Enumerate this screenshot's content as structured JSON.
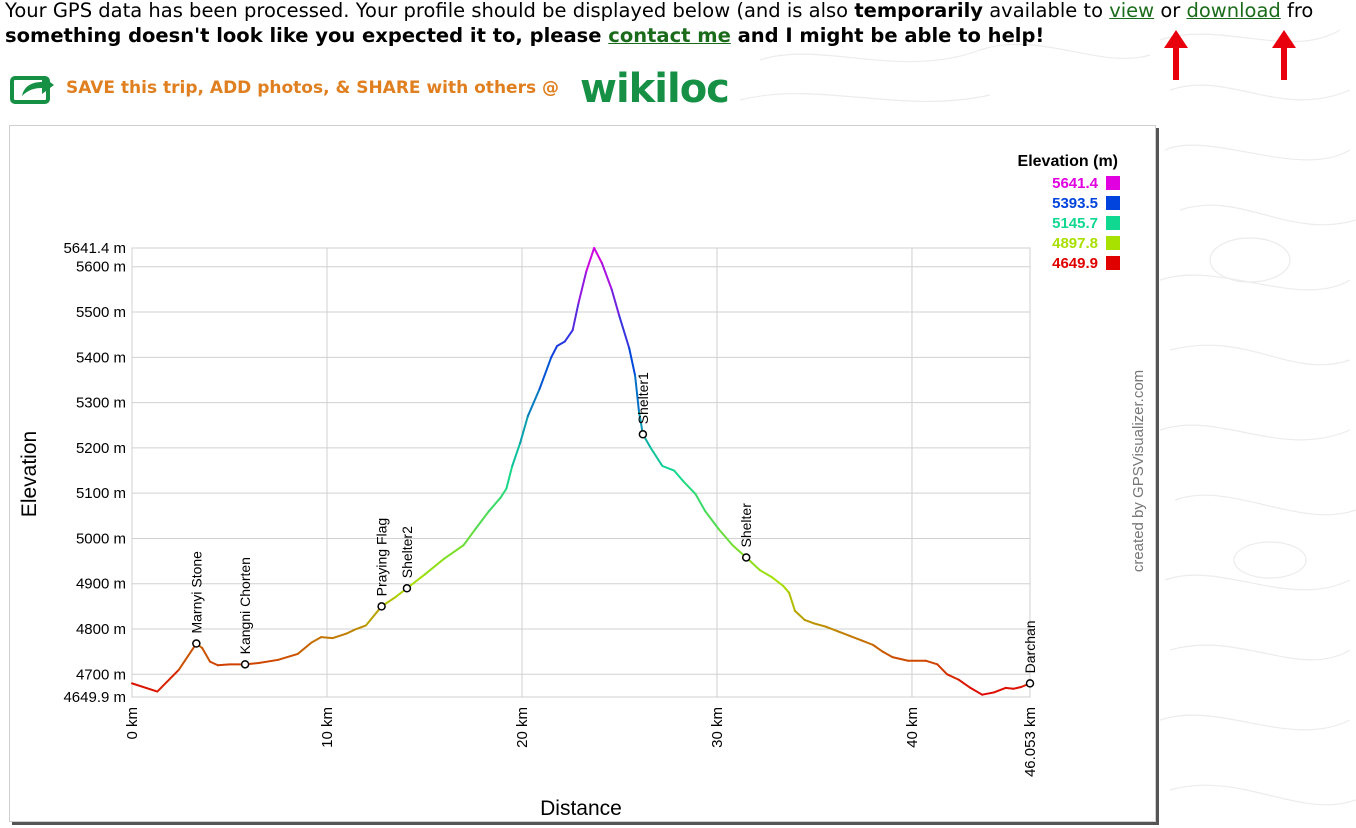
{
  "message": {
    "line1_a": "Your GPS data has been processed. Your profile should be displayed below (and is also ",
    "line1_bold": "temporarily",
    "line1_b": " available to ",
    "view_link": "view",
    "or_text": " or ",
    "download_link": "download",
    "line1_c": " fro",
    "line2_a": "something doesn't look like you expected it to, please ",
    "contact_link": "contact me",
    "line2_b": " and I might be able to help!"
  },
  "banner": {
    "text": "SAVE this trip, ADD photos, & SHARE with others @",
    "brand": "wikiloc",
    "icon": "share-arrow-icon"
  },
  "colors": {
    "link": "#1a6b1a",
    "arrow": "#e8000c",
    "banner_text": "#e07f20",
    "brand": "#159045"
  },
  "chart_data": {
    "type": "line",
    "xlabel": "Distance",
    "ylabel": "Elevation",
    "xlim": [
      0,
      46.053
    ],
    "ylim": [
      4649.9,
      5641.4
    ],
    "x_ticks": [
      {
        "v": 0,
        "label": "0 km"
      },
      {
        "v": 10,
        "label": "10 km"
      },
      {
        "v": 20,
        "label": "20 km"
      },
      {
        "v": 30,
        "label": "30 km"
      },
      {
        "v": 40,
        "label": "40 km"
      },
      {
        "v": 46.053,
        "label": "46.053 km"
      }
    ],
    "y_ticks": [
      {
        "v": 4649.9,
        "label": "4649.9 m"
      },
      {
        "v": 4700,
        "label": "4700 m"
      },
      {
        "v": 4800,
        "label": "4800 m"
      },
      {
        "v": 4900,
        "label": "4900 m"
      },
      {
        "v": 5000,
        "label": "5000 m"
      },
      {
        "v": 5100,
        "label": "5100 m"
      },
      {
        "v": 5200,
        "label": "5200 m"
      },
      {
        "v": 5300,
        "label": "5300 m"
      },
      {
        "v": 5400,
        "label": "5400 m"
      },
      {
        "v": 5500,
        "label": "5500 m"
      },
      {
        "v": 5600,
        "label": "5600 m"
      },
      {
        "v": 5641.4,
        "label": "5641.4 m"
      }
    ],
    "grid": true,
    "legend": {
      "title": "Elevation (m)",
      "placement": "top-right",
      "entries": [
        {
          "label": "5641.4",
          "color": "#e000e0"
        },
        {
          "label": "5393.5",
          "color": "#0044dd"
        },
        {
          "label": "5145.7",
          "color": "#10d890"
        },
        {
          "label": "4897.8",
          "color": "#a8e000"
        },
        {
          "label": "4649.9",
          "color": "#e00000"
        }
      ]
    },
    "credit": "created by GPSVisualizer.com",
    "points": [
      [
        0,
        4680
      ],
      [
        1.3,
        4662
      ],
      [
        2.4,
        4710
      ],
      [
        3.3,
        4768
      ],
      [
        3.6,
        4758
      ],
      [
        4.0,
        4728
      ],
      [
        4.4,
        4720
      ],
      [
        5.0,
        4722
      ],
      [
        5.8,
        4722
      ],
      [
        6.5,
        4725
      ],
      [
        7.5,
        4732
      ],
      [
        8.5,
        4745
      ],
      [
        9.2,
        4770
      ],
      [
        9.7,
        4782
      ],
      [
        10.3,
        4780
      ],
      [
        11.0,
        4790
      ],
      [
        11.5,
        4800
      ],
      [
        12.0,
        4808
      ],
      [
        12.8,
        4850
      ],
      [
        13.5,
        4870
      ],
      [
        14.1,
        4890
      ],
      [
        15.0,
        4920
      ],
      [
        16.0,
        4955
      ],
      [
        17.0,
        4985
      ],
      [
        17.6,
        5020
      ],
      [
        18.3,
        5060
      ],
      [
        18.9,
        5090
      ],
      [
        19.2,
        5110
      ],
      [
        19.5,
        5160
      ],
      [
        19.9,
        5210
      ],
      [
        20.3,
        5270
      ],
      [
        20.9,
        5330
      ],
      [
        21.5,
        5400
      ],
      [
        21.8,
        5425
      ],
      [
        22.2,
        5435
      ],
      [
        22.6,
        5460
      ],
      [
        22.9,
        5520
      ],
      [
        23.3,
        5590
      ],
      [
        23.7,
        5641.4
      ],
      [
        24.1,
        5608
      ],
      [
        24.6,
        5550
      ],
      [
        25.0,
        5490
      ],
      [
        25.5,
        5420
      ],
      [
        25.8,
        5360
      ],
      [
        26.0,
        5280
      ],
      [
        26.2,
        5230
      ],
      [
        26.6,
        5200
      ],
      [
        27.2,
        5160
      ],
      [
        27.8,
        5150
      ],
      [
        28.3,
        5125
      ],
      [
        28.9,
        5098
      ],
      [
        29.4,
        5060
      ],
      [
        30.1,
        5020
      ],
      [
        30.8,
        4985
      ],
      [
        31.5,
        4958
      ],
      [
        32.2,
        4930
      ],
      [
        32.8,
        4915
      ],
      [
        33.4,
        4895
      ],
      [
        33.7,
        4880
      ],
      [
        34.0,
        4840
      ],
      [
        34.5,
        4820
      ],
      [
        35.0,
        4812
      ],
      [
        35.6,
        4805
      ],
      [
        36.2,
        4795
      ],
      [
        36.8,
        4785
      ],
      [
        37.4,
        4775
      ],
      [
        38.0,
        4765
      ],
      [
        38.5,
        4750
      ],
      [
        39.0,
        4738
      ],
      [
        39.8,
        4730
      ],
      [
        40.7,
        4730
      ],
      [
        41.3,
        4722
      ],
      [
        41.8,
        4700
      ],
      [
        42.4,
        4688
      ],
      [
        43.0,
        4670
      ],
      [
        43.6,
        4655
      ],
      [
        44.2,
        4660
      ],
      [
        44.8,
        4670
      ],
      [
        45.2,
        4668
      ],
      [
        45.6,
        4672
      ],
      [
        46.053,
        4680
      ]
    ],
    "waypoints": [
      {
        "name": "Marnyi Stone",
        "x": 3.3,
        "y": 4768
      },
      {
        "name": "Kangni Chorten",
        "x": 5.8,
        "y": 4722
      },
      {
        "name": "Praying Flag",
        "x": 12.8,
        "y": 4850
      },
      {
        "name": "Shelter2",
        "x": 14.1,
        "y": 4890
      },
      {
        "name": "Shelter1",
        "x": 26.2,
        "y": 5230
      },
      {
        "name": "Shelter",
        "x": 31.5,
        "y": 4958
      },
      {
        "name": "Darchan",
        "x": 46.053,
        "y": 4680
      }
    ]
  }
}
